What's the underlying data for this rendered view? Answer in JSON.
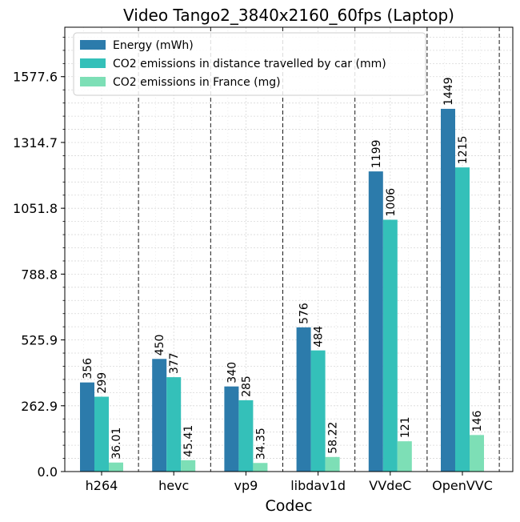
{
  "chart_data": {
    "type": "bar",
    "title": "Video Tango2_3840x2160_60fps (Laptop)",
    "xlabel": "Codec",
    "ylabel": "",
    "categories": [
      "h264",
      "hevc",
      "vp9",
      "libdav1d",
      "VVdeC",
      "OpenVVC"
    ],
    "series": [
      {
        "name": "Energy (mWh)",
        "color": "#2c7bab",
        "values": [
          356,
          450,
          340,
          576,
          1199,
          1449
        ],
        "labels": [
          "356",
          "450",
          "340",
          "576",
          "1199",
          "1449"
        ]
      },
      {
        "name": "CO2 emissions in distance travelled by car (mm)",
        "color": "#34c0b9",
        "values": [
          299,
          377,
          285,
          484,
          1006,
          1215
        ],
        "labels": [
          "299",
          "377",
          "285",
          "484",
          "1006",
          "1215"
        ]
      },
      {
        "name": "CO2 emissions in France (mg)",
        "color": "#7ddfb6",
        "values": [
          36.01,
          45.41,
          34.35,
          58.22,
          121,
          146
        ],
        "labels": [
          "36.01",
          "45.41",
          "34.35",
          "58.22",
          "121",
          "146"
        ]
      }
    ],
    "yticks": [
      0.0,
      262.9,
      525.9,
      788.8,
      1051.8,
      1314.7,
      1577.6
    ],
    "ytick_labels": [
      "0.0",
      "262.9",
      "525.9",
      "788.8",
      "1051.8",
      "1314.7",
      "1577.6"
    ],
    "ylim": [
      0,
      1775
    ],
    "grid": true,
    "legend_position": "top-left"
  }
}
